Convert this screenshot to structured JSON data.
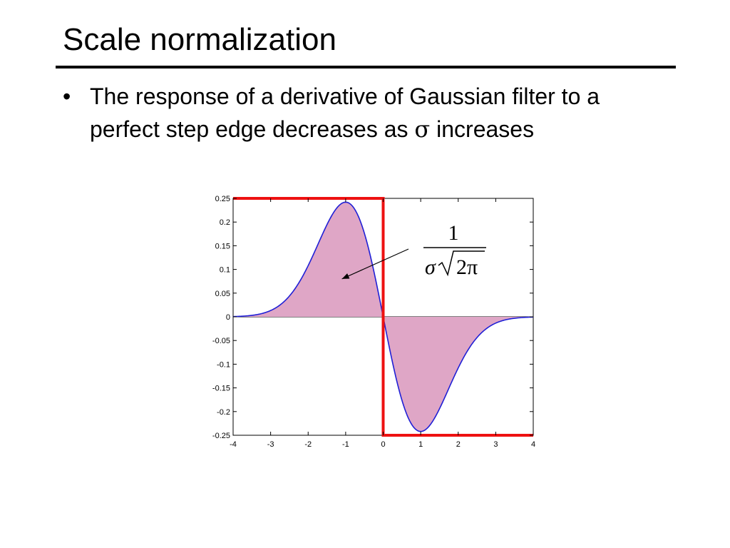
{
  "slide": {
    "title": "Scale normalization",
    "bullet_marker": "•",
    "bullet_text": "The response of a derivative of Gaussian filter to a perfect step edge decreases as",
    "bullet_sigma": "σ",
    "bullet_tail": "increases"
  },
  "annotation": {
    "numerator": "1",
    "denom_sigma": "σ",
    "denom_radicand": "2π",
    "arrow_target": [
      -1.1,
      0.08
    ]
  },
  "chart_data": {
    "type": "line",
    "title": "",
    "xlabel": "",
    "ylabel": "",
    "xlim": [
      -4,
      4
    ],
    "ylim": [
      -0.25,
      0.25
    ],
    "xticks": [
      -4,
      -3,
      -2,
      -1,
      0,
      1,
      2,
      3,
      4
    ],
    "yticks": [
      0.25,
      0.2,
      0.15,
      0.1,
      0.05,
      0,
      -0.05,
      -0.1,
      -0.15,
      -0.2,
      -0.25
    ],
    "grid": false,
    "legend": "none",
    "series": [
      {
        "kind": "derivative-of-gaussian",
        "sigma": 1,
        "fill": true,
        "color": "#1f1fd6",
        "fill_color": "#dfa6c6"
      },
      {
        "kind": "step-edge",
        "x": [
          -4,
          0,
          0,
          4
        ],
        "y": [
          0.25,
          0.25,
          -0.25,
          -0.25
        ],
        "color": "#ee1111"
      }
    ]
  }
}
